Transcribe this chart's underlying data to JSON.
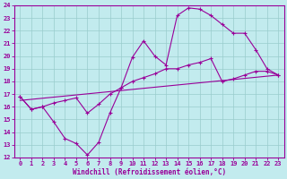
{
  "xlabel": "Windchill (Refroidissement éolien,°C)",
  "xlim": [
    -0.5,
    23.5
  ],
  "ylim": [
    12,
    24
  ],
  "xticks": [
    0,
    1,
    2,
    3,
    4,
    5,
    6,
    7,
    8,
    9,
    10,
    11,
    12,
    13,
    14,
    15,
    16,
    17,
    18,
    19,
    20,
    21,
    22,
    23
  ],
  "yticks": [
    12,
    13,
    14,
    15,
    16,
    17,
    18,
    19,
    20,
    21,
    22,
    23,
    24
  ],
  "bg_color": "#c2ebee",
  "line_color": "#990099",
  "grid_color": "#99cccc",
  "line1_x": [
    0,
    1,
    2,
    3,
    4,
    5,
    6,
    7,
    8,
    9,
    10,
    11,
    12,
    13,
    14,
    15,
    16,
    17,
    18,
    19,
    20,
    21,
    22,
    23
  ],
  "line1_y": [
    16.8,
    15.8,
    16.0,
    14.8,
    13.5,
    13.1,
    12.2,
    13.2,
    15.5,
    17.5,
    19.9,
    21.2,
    20.0,
    19.3,
    23.2,
    23.8,
    23.7,
    23.2,
    22.5,
    21.8,
    21.8,
    20.5,
    19.0,
    18.5
  ],
  "line2_x": [
    0,
    1,
    2,
    3,
    4,
    5,
    6,
    7,
    8,
    9,
    10,
    11,
    12,
    13,
    14,
    15,
    16,
    17,
    18,
    19,
    20,
    21,
    22,
    23
  ],
  "line2_y": [
    16.8,
    15.8,
    16.0,
    16.3,
    16.5,
    16.7,
    15.5,
    16.2,
    17.0,
    17.5,
    18.0,
    18.3,
    18.6,
    19.0,
    19.0,
    19.3,
    19.5,
    19.8,
    18.0,
    18.2,
    18.5,
    18.8,
    18.8,
    18.5
  ],
  "line3_x": [
    0,
    23
  ],
  "line3_y": [
    16.5,
    18.5
  ]
}
